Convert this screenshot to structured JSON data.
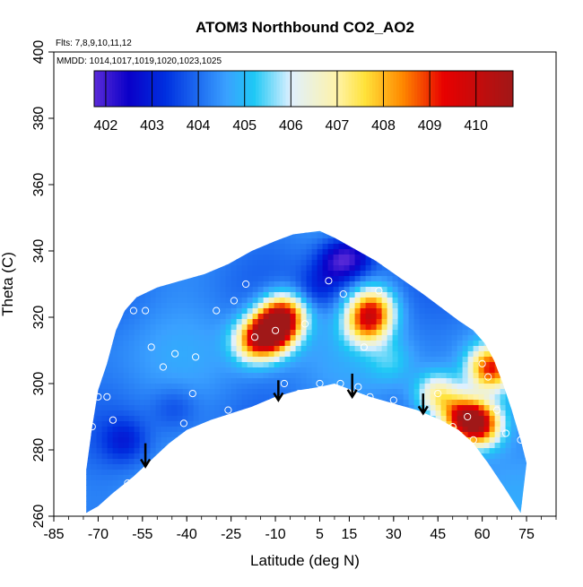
{
  "chart_data": {
    "type": "heatmap",
    "title": "ATOM3 Northbound CO2_AO2",
    "flights_note": "Flts: 7,8,9,10,11,12",
    "dates_note": "MMDD: 1014,1017,1019,1020,1023,1025",
    "xlabel": "Latitude (deg N)",
    "ylabel": "Theta (C)",
    "xlim": [
      -85,
      85
    ],
    "ylim": [
      260,
      400
    ],
    "x_ticks": [
      -85,
      -70,
      -55,
      -40,
      -25,
      -10,
      5,
      15,
      30,
      45,
      60,
      75
    ],
    "y_ticks": [
      260,
      280,
      300,
      320,
      340,
      360,
      380,
      400
    ],
    "colorbar": {
      "ticks": [
        402,
        403,
        404,
        405,
        406,
        407,
        408,
        409,
        410
      ],
      "range": [
        401.75,
        410.8
      ],
      "placement": "top-inset"
    },
    "colors": {
      "low": "#5b2bd8",
      "deep_blue": "#0a00c8",
      "blue": "#1e6cf0",
      "light_blue": "#3aa0ff",
      "cyan": "#1ec8f5",
      "pale": "#dff0ff",
      "yellow": "#ffe23a",
      "orange": "#ff8a00",
      "red": "#e80000",
      "dark_red": "#a01818"
    },
    "base_co2": 404.3,
    "lower_boundary": [
      [
        -74,
        261
      ],
      [
        -70,
        263
      ],
      [
        -65,
        267
      ],
      [
        -58,
        272
      ],
      [
        -52,
        277
      ],
      [
        -46,
        282
      ],
      [
        -40,
        286
      ],
      [
        -32,
        289
      ],
      [
        -25,
        291
      ],
      [
        -18,
        293
      ],
      [
        -10,
        296
      ],
      [
        -2,
        298
      ],
      [
        5,
        299
      ],
      [
        10,
        300
      ],
      [
        16,
        298
      ],
      [
        22,
        296
      ],
      [
        30,
        294
      ],
      [
        38,
        292
      ],
      [
        46,
        289
      ],
      [
        52,
        286
      ],
      [
        57,
        282
      ],
      [
        62,
        276
      ],
      [
        68,
        268
      ],
      [
        73,
        261
      ]
    ],
    "upper_boundary": [
      [
        -74,
        274
      ],
      [
        -72,
        287
      ],
      [
        -70,
        298
      ],
      [
        -67,
        306
      ],
      [
        -64,
        316
      ],
      [
        -61,
        322
      ],
      [
        -57,
        326
      ],
      [
        -50,
        329
      ],
      [
        -42,
        331
      ],
      [
        -34,
        333
      ],
      [
        -26,
        336
      ],
      [
        -18,
        340
      ],
      [
        -10,
        343
      ],
      [
        -4,
        345
      ],
      [
        5,
        346
      ],
      [
        10,
        344
      ],
      [
        14,
        342
      ],
      [
        18,
        340
      ],
      [
        24,
        337
      ],
      [
        32,
        332
      ],
      [
        40,
        327
      ],
      [
        46,
        323
      ],
      [
        52,
        319
      ],
      [
        57,
        316
      ],
      [
        61,
        312
      ],
      [
        64,
        307
      ],
      [
        67,
        300
      ],
      [
        70,
        292
      ],
      [
        73,
        283
      ],
      [
        75,
        276
      ]
    ],
    "features": [
      {
        "lat": -12,
        "theta": 315,
        "value": 410.3
      },
      {
        "lat": -18,
        "theta": 312,
        "value": 408.0
      },
      {
        "lat": -8,
        "theta": 320,
        "value": 409.2
      },
      {
        "lat": 22,
        "theta": 322,
        "value": 408.0
      },
      {
        "lat": 20,
        "theta": 317,
        "value": 407.5
      },
      {
        "lat": 58,
        "theta": 287,
        "value": 409.8
      },
      {
        "lat": 52,
        "theta": 289,
        "value": 408.6
      },
      {
        "lat": 62,
        "theta": 304,
        "value": 409.2
      },
      {
        "lat": 44,
        "theta": 296,
        "value": 407.3
      },
      {
        "lat": 10,
        "theta": 336,
        "value": 402.5
      },
      {
        "lat": 16,
        "theta": 338,
        "value": 402.8
      },
      {
        "lat": 4,
        "theta": 328,
        "value": 403.3
      },
      {
        "lat": -62,
        "theta": 282,
        "value": 403.2
      },
      {
        "lat": -45,
        "theta": 292,
        "value": 403.6
      },
      {
        "lat": 28,
        "theta": 306,
        "value": 405.2
      }
    ],
    "sample_points": [
      [
        -72,
        287
      ],
      [
        -68,
        307
      ],
      [
        -64,
        325
      ],
      [
        -58,
        322
      ],
      [
        -54,
        322
      ],
      [
        -48,
        305
      ],
      [
        -44,
        309
      ],
      [
        -41,
        288
      ],
      [
        -37,
        308
      ],
      [
        -34,
        287
      ],
      [
        -30,
        322
      ],
      [
        -26,
        292
      ],
      [
        -24,
        325
      ],
      [
        -17,
        314
      ],
      [
        -10,
        316
      ],
      [
        -7,
        300
      ],
      [
        -2,
        297
      ],
      [
        0,
        318
      ],
      [
        5,
        300
      ],
      [
        8,
        331
      ],
      [
        12,
        300
      ],
      [
        13,
        327
      ],
      [
        15,
        343
      ],
      [
        18,
        299
      ],
      [
        20,
        311
      ],
      [
        22,
        296
      ],
      [
        30,
        295
      ],
      [
        38,
        290
      ],
      [
        45,
        297
      ],
      [
        50,
        287
      ],
      [
        55,
        290
      ],
      [
        60,
        306
      ],
      [
        62,
        302
      ],
      [
        65,
        292
      ],
      [
        68,
        285
      ],
      [
        73,
        283
      ],
      [
        -70,
        296
      ],
      [
        -65,
        289
      ],
      [
        -60,
        270
      ],
      [
        -52,
        311
      ],
      [
        -38,
        297
      ],
      [
        -20,
        330
      ],
      [
        -67,
        296
      ],
      [
        57,
        283
      ],
      [
        25,
        328
      ]
    ],
    "arrows": [
      {
        "lat": -54,
        "theta_top": 282,
        "theta_bottom": 275
      },
      {
        "lat": -9,
        "theta_top": 301,
        "theta_bottom": 295
      },
      {
        "lat": 16,
        "theta_top": 303,
        "theta_bottom": 296
      },
      {
        "lat": 40,
        "theta_top": 297,
        "theta_bottom": 291
      }
    ]
  }
}
